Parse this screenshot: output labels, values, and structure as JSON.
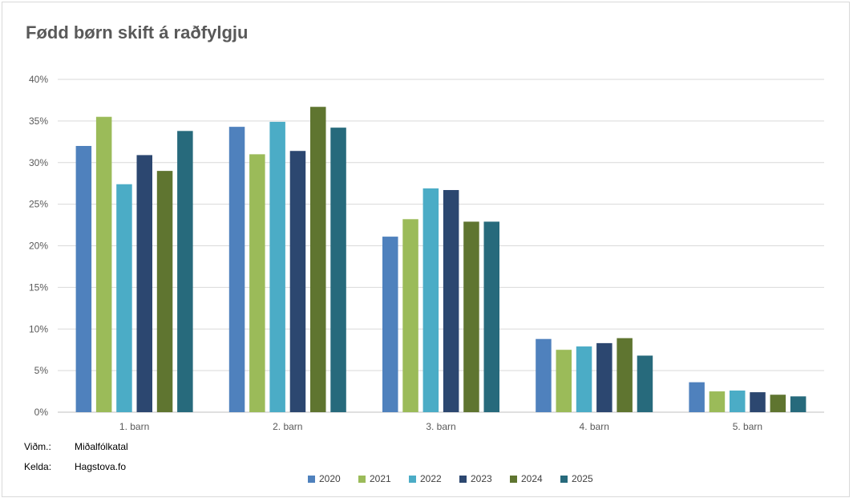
{
  "chart_data": {
    "type": "bar",
    "title": "Fødd børn skift á raðfylgju",
    "categories": [
      "1. barn",
      "2. barn",
      "3. barn",
      "4. barn",
      "5. barn"
    ],
    "ylim": [
      0,
      40
    ],
    "yticks": [
      "0%",
      "5%",
      "10%",
      "15%",
      "20%",
      "25%",
      "30%",
      "35%",
      "40%"
    ],
    "ytick_values": [
      0,
      5,
      10,
      15,
      20,
      25,
      30,
      35,
      40
    ],
    "grid": true,
    "legend_position": "bottom",
    "series": [
      {
        "name": "2020",
        "color": "#4f81bd",
        "values": [
          32.0,
          34.3,
          21.1,
          8.8,
          3.6
        ]
      },
      {
        "name": "2021",
        "color": "#9bbb59",
        "values": [
          35.5,
          31.0,
          23.2,
          7.5,
          2.5
        ]
      },
      {
        "name": "2022",
        "color": "#4bacc6",
        "values": [
          27.4,
          34.9,
          26.9,
          7.9,
          2.6
        ]
      },
      {
        "name": "2023",
        "color": "#2c4770",
        "values": [
          30.9,
          31.4,
          26.7,
          8.3,
          2.4
        ]
      },
      {
        "name": "2024",
        "color": "#5f7530",
        "values": [
          29.0,
          36.7,
          22.9,
          8.9,
          2.1
        ]
      },
      {
        "name": "2025",
        "color": "#276a7c",
        "values": [
          33.8,
          34.2,
          22.9,
          6.8,
          1.9
        ]
      }
    ]
  },
  "notes": {
    "unit_label": "Viðm.:",
    "unit_value": "Miðalfólkatal",
    "source_label": "Kelda:",
    "source_value": "Hagstova.fo"
  }
}
